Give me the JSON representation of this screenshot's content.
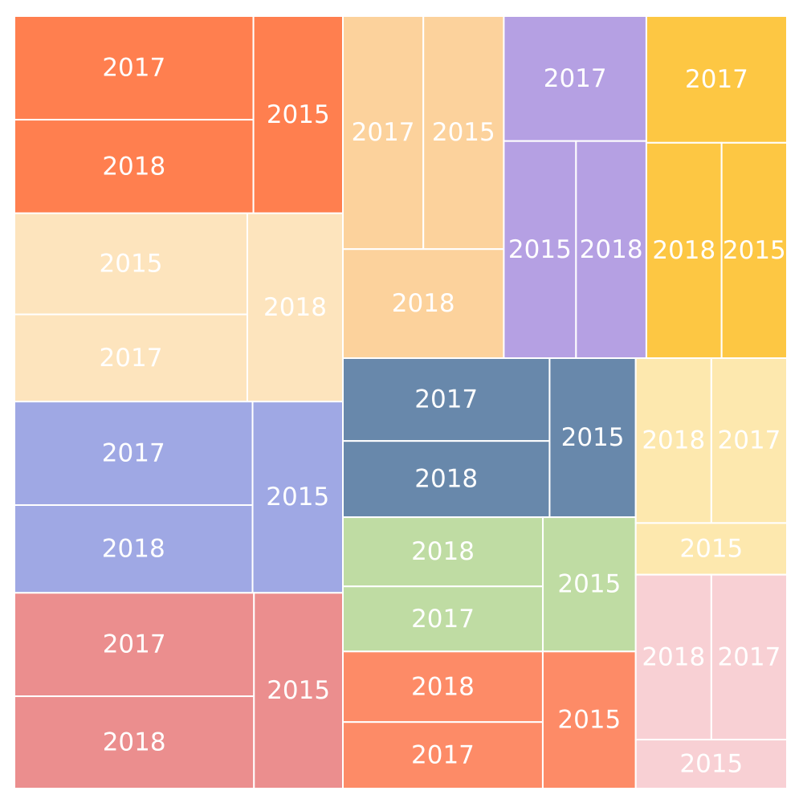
{
  "chart_data": {
    "type": "treemap",
    "title": "",
    "groups": [
      {
        "color": "#FF7F4F",
        "items": [
          {
            "label": "2017",
            "value": 20.5
          },
          {
            "label": "2018",
            "value": 18.5
          },
          {
            "label": "2015",
            "value": 14.6
          }
        ]
      },
      {
        "color": "#FDE4BD",
        "items": [
          {
            "label": "2015",
            "value": 19.5
          },
          {
            "label": "2017",
            "value": 16.8
          },
          {
            "label": "2018",
            "value": 14.9
          }
        ]
      },
      {
        "color": "#9FA8E4",
        "items": [
          {
            "label": "2017",
            "value": 20.4
          },
          {
            "label": "2018",
            "value": 17.3
          },
          {
            "label": "2015",
            "value": 14.3
          }
        ]
      },
      {
        "color": "#EB8E8E",
        "items": [
          {
            "label": "2017",
            "value": 20.5
          },
          {
            "label": "2018",
            "value": 18.3
          },
          {
            "label": "2015",
            "value": 14.4
          }
        ]
      },
      {
        "color": "#FCD29C",
        "items": [
          {
            "label": "2017",
            "value": 14.0
          },
          {
            "label": "2015",
            "value": 14.0
          },
          {
            "label": "2018",
            "value": 13.1
          }
        ]
      },
      {
        "color": "#B5A0E3",
        "items": [
          {
            "label": "2017",
            "value": 13.3
          },
          {
            "label": "2015",
            "value": 11.7
          },
          {
            "label": "2018",
            "value": 11.4
          }
        ]
      },
      {
        "color": "#FDC743",
        "items": [
          {
            "label": "2017",
            "value": 13.3
          },
          {
            "label": "2018",
            "value": 12.1
          },
          {
            "label": "2015",
            "value": 10.5
          }
        ]
      },
      {
        "color": "#6888AB",
        "items": [
          {
            "label": "2017",
            "value": 12.5
          },
          {
            "label": "2018",
            "value": 11.5
          },
          {
            "label": "2015",
            "value": 10.0
          }
        ]
      },
      {
        "color": "#BFDCA3",
        "items": [
          {
            "label": "2018",
            "value": 10.1
          },
          {
            "label": "2017",
            "value": 9.5
          },
          {
            "label": "2015",
            "value": 9.1
          }
        ]
      },
      {
        "color": "#FD8B67",
        "items": [
          {
            "label": "2018",
            "value": 10.3
          },
          {
            "label": "2017",
            "value": 9.7
          },
          {
            "label": "2015",
            "value": 9.3
          }
        ]
      },
      {
        "color": "#FDE8AE",
        "items": [
          {
            "label": "2018",
            "value": 9.1
          },
          {
            "label": "2017",
            "value": 9.1
          },
          {
            "label": "2015",
            "value": 5.7
          }
        ]
      },
      {
        "color": "#F8D0D4",
        "items": [
          {
            "label": "2018",
            "value": 9.1
          },
          {
            "label": "2017",
            "value": 9.1
          },
          {
            "label": "2015",
            "value": 5.4
          }
        ]
      }
    ]
  }
}
